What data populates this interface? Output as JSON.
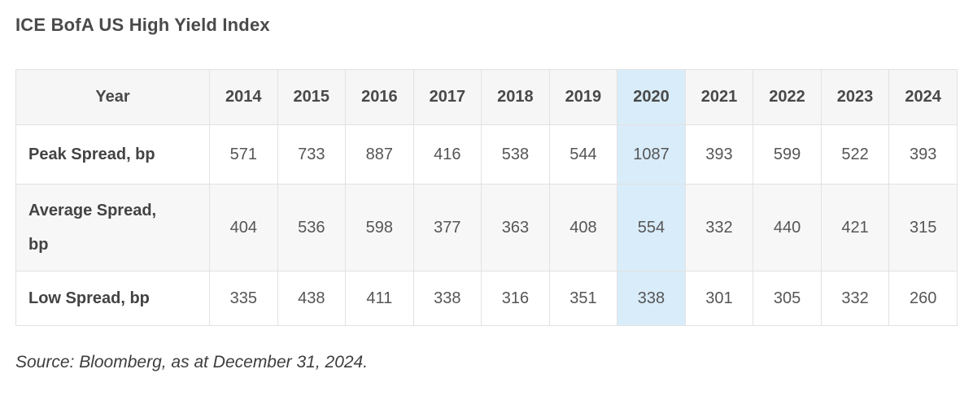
{
  "page": {
    "title": "ICE BofA US High Yield Index",
    "source_note": "Source: Bloomberg, as at December 31, 2024."
  },
  "table": {
    "header": [
      "Year",
      "2014",
      "2015",
      "2016",
      "2017",
      "2018",
      "2019",
      "2020",
      "2021",
      "2022",
      "2023",
      "2024"
    ],
    "highlight_column": "2020",
    "rows": [
      {
        "label": "Peak Spread, bp",
        "values": [
          571,
          733,
          887,
          416,
          538,
          544,
          1087,
          393,
          599,
          522,
          393
        ]
      },
      {
        "label": "Average Spread, bp",
        "values": [
          404,
          536,
          598,
          377,
          363,
          408,
          554,
          332,
          440,
          421,
          315
        ]
      },
      {
        "label": "Low Spread, bp",
        "values": [
          335,
          438,
          411,
          338,
          316,
          351,
          338,
          301,
          305,
          332,
          260
        ]
      }
    ]
  },
  "colors": {
    "highlight_blue": "#d9ecf9",
    "header_bg": "#f6f6f6",
    "stripe_bg": "#f7f7f7",
    "border": "#e2e2e2",
    "header_rule": "#d1d1d1",
    "text": "#4a4a4a"
  },
  "chart_data": {
    "type": "table",
    "title": "ICE BofA US High Yield Index",
    "categories": [
      "2014",
      "2015",
      "2016",
      "2017",
      "2018",
      "2019",
      "2020",
      "2021",
      "2022",
      "2023",
      "2024"
    ],
    "series": [
      {
        "name": "Peak Spread, bp",
        "values": [
          571,
          733,
          887,
          416,
          538,
          544,
          1087,
          393,
          599,
          522,
          393
        ]
      },
      {
        "name": "Average Spread, bp",
        "values": [
          404,
          536,
          598,
          377,
          363,
          408,
          554,
          332,
          440,
          421,
          315
        ]
      },
      {
        "name": "Low Spread, bp",
        "values": [
          335,
          438,
          411,
          338,
          316,
          351,
          338,
          301,
          305,
          332,
          260
        ]
      }
    ],
    "highlighted_category": "2020",
    "annotations": [
      "Source: Bloomberg, as at December 31, 2024."
    ]
  }
}
